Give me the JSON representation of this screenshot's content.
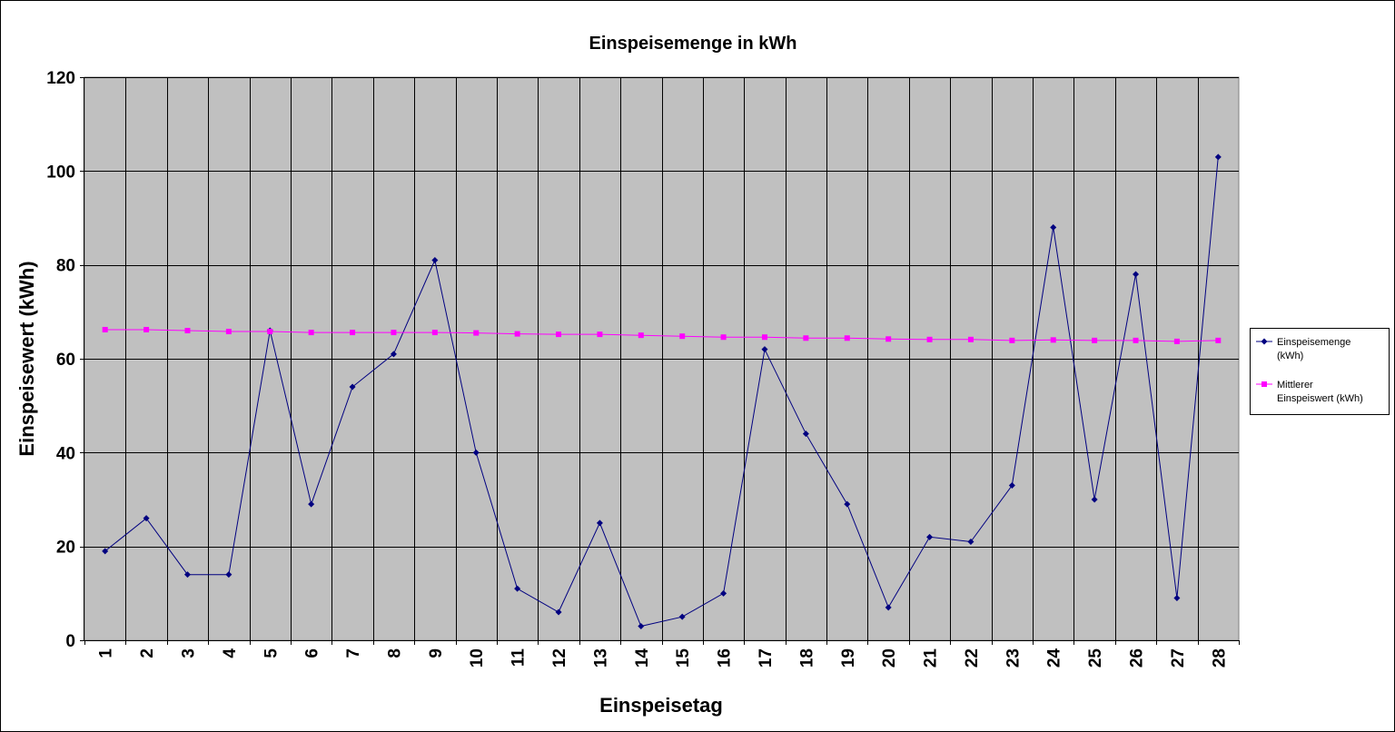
{
  "chart_data": {
    "type": "line",
    "title": "Einspeisemenge in kWh",
    "xlabel": "Einspeisetag",
    "ylabel": "Einspeisewert  (kWh)",
    "ylim": [
      0,
      120
    ],
    "yticks": [
      0,
      20,
      40,
      60,
      80,
      100,
      120
    ],
    "categories": [
      "1",
      "2",
      "3",
      "4",
      "5",
      "6",
      "7",
      "8",
      "9",
      "10",
      "11",
      "12",
      "13",
      "14",
      "15",
      "16",
      "17",
      "18",
      "19",
      "20",
      "21",
      "22",
      "23",
      "24",
      "25",
      "26",
      "27",
      "28"
    ],
    "grid": true,
    "legend_position": "right",
    "plot_background": "#c0c0c0",
    "series": [
      {
        "name": "Einspeisemenge (kWh)",
        "legend_lines": [
          "Einspeisemenge",
          "(kWh)"
        ],
        "color": "#000080",
        "marker": "diamond",
        "values": [
          19,
          26,
          14,
          14,
          66,
          29,
          54,
          61,
          81,
          40,
          11,
          6,
          25,
          3,
          5,
          10,
          62,
          44,
          29,
          7,
          22,
          21,
          33,
          88,
          30,
          78,
          9,
          103
        ]
      },
      {
        "name": "Mittlerer Einspeiswert (kWh)",
        "legend_lines": [
          "Mittlerer",
          "Einspeiswert (kWh)"
        ],
        "color": "#ff00ff",
        "marker": "square",
        "values": [
          66.2,
          66.2,
          66.0,
          65.8,
          65.8,
          65.6,
          65.6,
          65.6,
          65.6,
          65.5,
          65.3,
          65.2,
          65.2,
          65.0,
          64.8,
          64.6,
          64.6,
          64.4,
          64.4,
          64.2,
          64.1,
          64.1,
          63.9,
          64.0,
          63.9,
          63.9,
          63.7,
          63.9
        ]
      }
    ]
  }
}
